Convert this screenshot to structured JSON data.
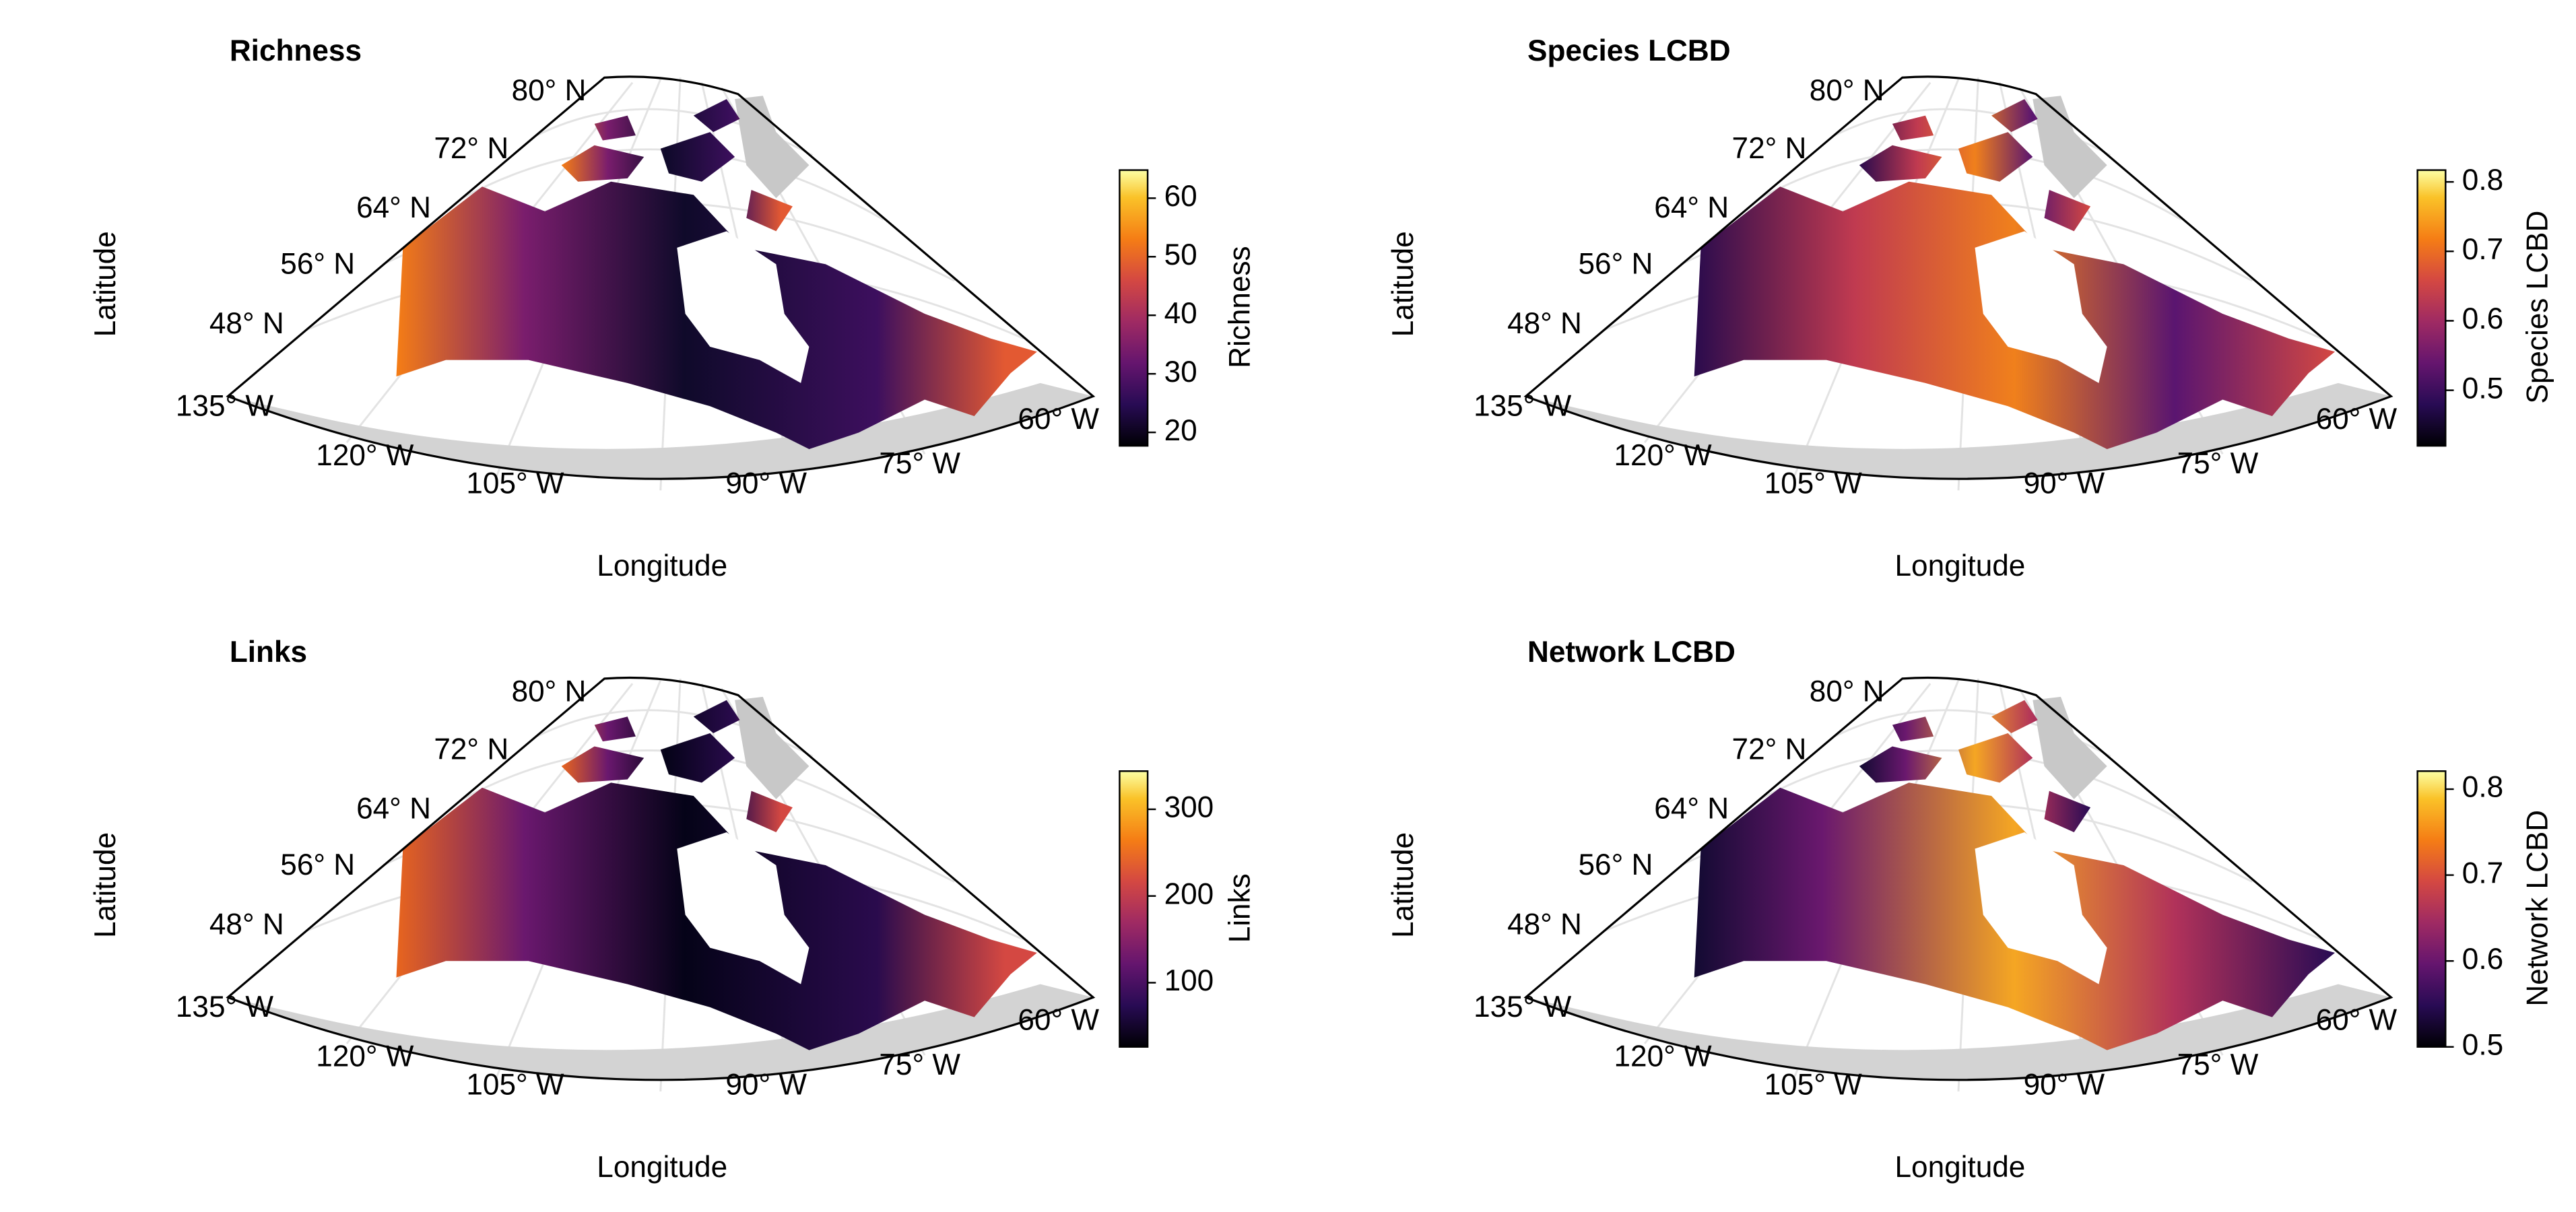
{
  "panels": [
    {
      "title": "Richness",
      "y_label": "Latitude",
      "x_label": "Longitude",
      "lat_labels": [
        "80° N",
        "72° N",
        "64° N",
        "56° N",
        "48° N"
      ],
      "lon_labels": [
        "135° W",
        "120° W",
        "105° W",
        "90° W",
        "75° W",
        "60° W"
      ],
      "colorbar": {
        "label": "Richness",
        "lim": [
          17.7,
          64.8
        ],
        "ticks": [
          20,
          30,
          40,
          50,
          60
        ]
      }
    },
    {
      "title": "Species LCBD",
      "y_label": "Latitude",
      "x_label": "Longitude",
      "lat_labels": [
        "80° N",
        "72° N",
        "64° N",
        "56° N",
        "48° N"
      ],
      "lon_labels": [
        "135° W",
        "120° W",
        "105° W",
        "90° W",
        "75° W",
        "60° W"
      ],
      "colorbar": {
        "label": "Species LCBD",
        "lim": [
          0.42,
          0.817
        ],
        "ticks": [
          0.5,
          0.6,
          0.7,
          0.8
        ]
      }
    },
    {
      "title": "Links",
      "y_label": "Latitude",
      "x_label": "Longitude",
      "lat_labels": [
        "80° N",
        "72° N",
        "64° N",
        "56° N",
        "48° N"
      ],
      "lon_labels": [
        "135° W",
        "120° W",
        "105° W",
        "90° W",
        "75° W",
        "60° W"
      ],
      "colorbar": {
        "label": "Links",
        "lim": [
          26,
          344
        ],
        "ticks": [
          100,
          200,
          300
        ]
      }
    },
    {
      "title": "Network LCBD",
      "y_label": "Latitude",
      "x_label": "Longitude",
      "lat_labels": [
        "80° N",
        "72° N",
        "64° N",
        "56° N",
        "48° N"
      ],
      "lon_labels": [
        "135° W",
        "120° W",
        "105° W",
        "90° W",
        "75° W",
        "60° W"
      ],
      "colorbar": {
        "label": "Network LCBD",
        "lim": [
          0.5,
          0.821
        ],
        "ticks": [
          0.5,
          0.6,
          0.7,
          0.8
        ]
      }
    }
  ]
}
